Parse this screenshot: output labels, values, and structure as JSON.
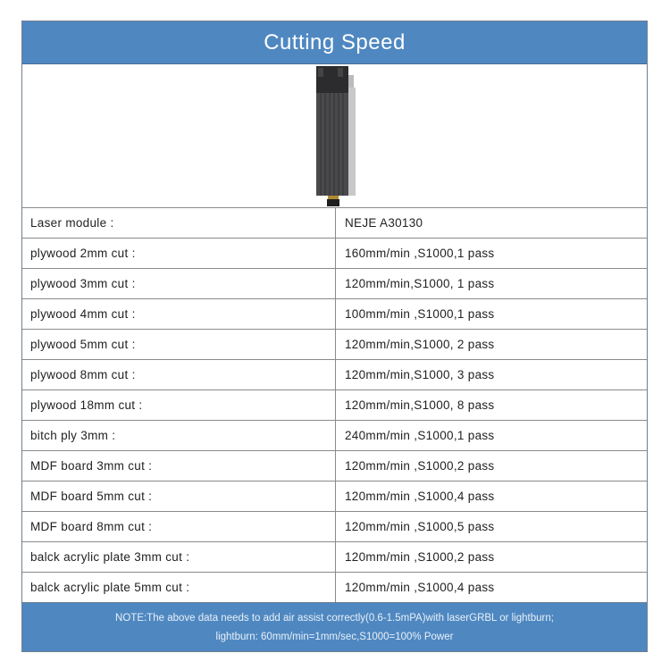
{
  "header": {
    "title": "Cutting Speed"
  },
  "image": {
    "icon": "laser-module-icon"
  },
  "rows": [
    {
      "label": "Laser module :",
      "value": "NEJE A30130"
    },
    {
      "label": "plywood 2mm cut :",
      "value": "160mm/min ,S1000,1 pass"
    },
    {
      "label": "plywood 3mm cut :",
      "value": "120mm/min,S1000, 1 pass"
    },
    {
      "label": "plywood 4mm cut :",
      "value": "100mm/min ,S1000,1 pass"
    },
    {
      "label": "plywood 5mm cut :",
      "value": "120mm/min,S1000, 2 pass"
    },
    {
      "label": "plywood 8mm cut :",
      "value": "120mm/min,S1000, 3 pass"
    },
    {
      "label": "plywood 18mm cut :",
      "value": "120mm/min,S1000, 8 pass"
    },
    {
      "label": "bitch ply 3mm :",
      "value": "240mm/min ,S1000,1 pass"
    },
    {
      "label": "MDF board 3mm cut :",
      "value": "120mm/min ,S1000,2 pass"
    },
    {
      "label": "MDF board 5mm cut :",
      "value": "120mm/min ,S1000,4 pass"
    },
    {
      "label": "MDF board 8mm cut :",
      "value": "120mm/min ,S1000,5 pass"
    },
    {
      "label": "balck acrylic plate 3mm cut :",
      "value": "120mm/min ,S1000,2 pass"
    },
    {
      "label": "balck acrylic plate 5mm cut :",
      "value": "120mm/min ,S1000,4 pass"
    }
  ],
  "note": {
    "line1": "NOTE:The above data needs to add air assist correctly(0.6-1.5mPA)with laserGRBL or lightburn;",
    "line2": "lightburn: 60mm/min=1mm/sec,S1000=100% Power"
  },
  "colors": {
    "header_bg": "#4f88c1",
    "note_bg": "#4f88c1"
  }
}
